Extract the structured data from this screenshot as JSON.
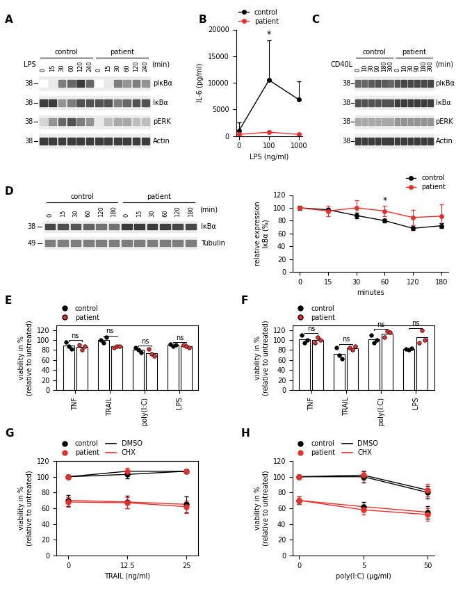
{
  "blots": [
    {
      "panel": "A",
      "stimulus": "LPS",
      "unit": "(min)",
      "groups": [
        "control",
        "patient"
      ],
      "lanes": [
        "0",
        "15",
        "30",
        "60",
        "120",
        "240"
      ],
      "rows": [
        {
          "name": "pIκBα",
          "mw": "38",
          "control": [
            0.0,
            0.1,
            0.6,
            0.7,
            0.9,
            0.7
          ],
          "patient": [
            0.0,
            0.1,
            0.6,
            0.5,
            0.6,
            0.5
          ]
        },
        {
          "name": "IκBα",
          "mw": "38",
          "control": [
            0.9,
            0.9,
            0.5,
            0.6,
            0.8,
            0.8
          ],
          "patient": [
            0.8,
            0.8,
            0.6,
            0.7,
            0.8,
            0.8
          ]
        },
        {
          "name": "pERK",
          "mw": "38",
          "control": [
            0.2,
            0.5,
            0.7,
            0.8,
            0.6,
            0.5
          ],
          "patient": [
            0.1,
            0.3,
            0.4,
            0.4,
            0.3,
            0.3
          ]
        },
        {
          "name": "Actin",
          "mw": "38",
          "control": [
            0.9,
            0.9,
            0.9,
            0.9,
            0.9,
            0.9
          ],
          "patient": [
            0.9,
            0.9,
            0.9,
            0.9,
            0.9,
            0.9
          ]
        }
      ]
    },
    {
      "panel": "C",
      "stimulus": "CD40L",
      "unit": "(min)",
      "groups": [
        "control",
        "patient"
      ],
      "lanes": [
        "0",
        "10",
        "30",
        "90",
        "180",
        "300"
      ],
      "rows": [
        {
          "name": "pIκBα",
          "mw": "38",
          "control": [
            0.7,
            0.7,
            0.75,
            0.8,
            0.75,
            0.7
          ],
          "patient": [
            0.8,
            0.85,
            0.85,
            0.85,
            0.85,
            0.85
          ]
        },
        {
          "name": "IκBα",
          "mw": "38",
          "control": [
            0.8,
            0.8,
            0.8,
            0.8,
            0.8,
            0.8
          ],
          "patient": [
            0.9,
            0.9,
            0.9,
            0.9,
            0.9,
            0.9
          ]
        },
        {
          "name": "pERK",
          "mw": "38",
          "control": [
            0.4,
            0.4,
            0.4,
            0.4,
            0.4,
            0.4
          ],
          "patient": [
            0.5,
            0.5,
            0.5,
            0.5,
            0.5,
            0.5
          ]
        },
        {
          "name": "Actin",
          "mw": "38",
          "control": [
            0.9,
            0.9,
            0.9,
            0.9,
            0.9,
            0.9
          ],
          "patient": [
            0.9,
            0.9,
            0.9,
            0.9,
            0.9,
            0.9
          ]
        }
      ]
    },
    {
      "panel": "D",
      "unit": "(min)",
      "groups": [
        "control",
        "patient"
      ],
      "lanes": [
        "0",
        "15",
        "30",
        "60",
        "120",
        "180"
      ],
      "rows": [
        {
          "name": "IκBα",
          "mw": "38",
          "control": [
            0.85,
            0.82,
            0.78,
            0.72,
            0.65,
            0.66
          ],
          "patient": [
            0.9,
            0.9,
            0.9,
            0.88,
            0.85,
            0.85
          ]
        },
        {
          "name": "Tubulin",
          "mw": "49",
          "control": [
            0.6,
            0.6,
            0.6,
            0.6,
            0.6,
            0.6
          ],
          "patient": [
            0.6,
            0.6,
            0.6,
            0.6,
            0.6,
            0.6
          ]
        }
      ]
    }
  ],
  "chart_data": [
    {
      "panel": "B",
      "type": "line",
      "categories": [
        "0",
        "100",
        "1000"
      ],
      "x_label": "LPS (ng/ml)",
      "y_label": "IL-6 (pg/ml)",
      "ylim": [
        0,
        20000
      ],
      "yticks": [
        0,
        5000,
        10000,
        15000,
        20000
      ],
      "legend": "upper left",
      "marker": "circle",
      "series": [
        {
          "name": "control",
          "color": "#000000",
          "values": [
            1000,
            10500,
            6800
          ],
          "error_upper": [
            1500,
            7500,
            3500
          ]
        },
        {
          "name": "patient",
          "color": "#e8302a",
          "values": [
            300,
            700,
            300
          ],
          "error_upper": [
            200,
            300,
            100
          ]
        }
      ],
      "annotations": [
        {
          "text": "*",
          "category": "100"
        }
      ]
    },
    {
      "type": "line",
      "categories": [
        "0",
        "15",
        "30",
        "60",
        "120",
        "180"
      ],
      "x_label": "minutes",
      "y_label": "relative expression\nIκBα (%)",
      "ylim": [
        0,
        120
      ],
      "yticks": [
        0,
        20,
        40,
        60,
        80,
        100,
        120
      ],
      "legend": "upper right",
      "marker": "circle",
      "series": [
        {
          "name": "control",
          "color": "#000000",
          "values": [
            100,
            97,
            88,
            80,
            68,
            72
          ],
          "error": [
            3,
            3,
            4,
            3,
            3,
            4
          ]
        },
        {
          "name": "patient",
          "color": "#e8302a",
          "values": [
            100,
            95,
            100,
            95,
            85,
            87
          ],
          "error": [
            1,
            8,
            12,
            8,
            12,
            18
          ]
        }
      ],
      "annotations": [
        {
          "text": "*",
          "category": "60"
        }
      ]
    },
    {
      "panel": "E",
      "type": "bar",
      "categories": [
        "TNF",
        "TRAIL",
        "poly(I:C)",
        "LPS"
      ],
      "y_label": "viability in %\n(relative to untreated)",
      "ylim": [
        0,
        130
      ],
      "yticks": [
        0,
        20,
        40,
        60,
        80,
        100,
        120
      ],
      "legend": "upper left",
      "series": [
        {
          "name": "control",
          "color": "#000000",
          "values": [
            89,
            100,
            80,
            90
          ],
          "points": [
            [
              96,
              88,
              82
            ],
            [
              100,
              95,
              105
            ],
            [
              85,
              80,
              75
            ],
            [
              92,
              88,
              90
            ]
          ]
        },
        {
          "name": "patient",
          "color": "#e8302a",
          "values": [
            86,
            87,
            74,
            88
          ],
          "points": [
            [
              90,
              80,
              88
            ],
            [
              85,
              88,
              87
            ],
            [
              82,
              72,
              68
            ],
            [
              90,
              88,
              85
            ]
          ]
        }
      ],
      "annotations": [
        {
          "text": "ns",
          "category": "TNF"
        },
        {
          "text": "ns",
          "category": "TRAIL"
        },
        {
          "text": "ns",
          "category": "poly(I:C)"
        },
        {
          "text": "ns",
          "category": "LPS"
        }
      ]
    },
    {
      "panel": "F",
      "type": "bar",
      "categories": [
        "TNF",
        "TRAIL",
        "poly(I:C)",
        "LPS"
      ],
      "y_label": "viability in %\n(relative to untreated)",
      "ylim": [
        0,
        130
      ],
      "yticks": [
        0,
        20,
        40,
        60,
        80,
        100,
        120
      ],
      "legend": "upper left",
      "series": [
        {
          "name": "control",
          "color": "#000000",
          "values": [
            102,
            72,
            102,
            82
          ],
          "points": [
            [
              110,
              95,
              100
            ],
            [
              85,
              70,
              62
            ],
            [
              110,
              95,
              100
            ],
            [
              82,
              80,
              83
            ]
          ]
        },
        {
          "name": "patient",
          "color": "#e8302a",
          "values": [
            100,
            84,
            113,
            105
          ],
          "points": [
            [
              95,
              105,
              100
            ],
            [
              85,
              80,
              88
            ],
            [
              105,
              118,
              115
            ],
            [
              95,
              120,
              100
            ]
          ]
        }
      ],
      "annotations": [
        {
          "text": "ns",
          "category": "TNF"
        },
        {
          "text": "ns",
          "category": "TRAIL"
        },
        {
          "text": "ns",
          "category": "poly(I:C)"
        },
        {
          "text": "ns",
          "category": "LPS"
        }
      ]
    },
    {
      "panel": "G",
      "type": "line",
      "x": [
        0,
        12.5,
        25
      ],
      "xlim": [
        -2.5,
        27.5
      ],
      "xticks": [
        0,
        12.5,
        25
      ],
      "x_label": "TRAIL (ng/ml)",
      "y_label": "viability in %\n(relative to untreated)",
      "ylim": [
        0,
        120
      ],
      "yticks": [
        0,
        20,
        40,
        60,
        80,
        100,
        120
      ],
      "legend": "upper left",
      "marker": "circle",
      "marker_groups": [
        {
          "name": "control",
          "color": "#000000"
        },
        {
          "name": "patient",
          "color": "#e8302a"
        }
      ],
      "line_groups": [
        {
          "name": "DMSO",
          "color": "#000000"
        },
        {
          "name": "CHX",
          "color": "#e8302a"
        }
      ],
      "series": [
        {
          "marker_group": "control",
          "line_group": "DMSO",
          "values": [
            100,
            103,
            107
          ],
          "error": [
            2,
            5,
            2
          ]
        },
        {
          "marker_group": "patient",
          "line_group": "DMSO",
          "values": [
            100,
            107,
            107
          ],
          "error": [
            2,
            4,
            2
          ]
        },
        {
          "marker_group": "control",
          "line_group": "CHX",
          "values": [
            70,
            68,
            65
          ],
          "error": [
            7,
            8,
            10
          ]
        },
        {
          "marker_group": "patient",
          "line_group": "CHX",
          "values": [
            68,
            67,
            62
          ],
          "error": [
            6,
            7,
            8
          ]
        }
      ]
    },
    {
      "panel": "H",
      "type": "line",
      "categories": [
        "0",
        "5",
        "50"
      ],
      "x_label": "poly(I:C) (µg/ml)",
      "y_label": "viability in %\n(relative to untreated)",
      "ylim": [
        0,
        120
      ],
      "yticks": [
        0,
        20,
        40,
        60,
        80,
        100,
        120
      ],
      "legend": "upper left",
      "marker": "circle",
      "marker_groups": [
        {
          "name": "control",
          "color": "#000000"
        },
        {
          "name": "patient",
          "color": "#e8302a"
        }
      ],
      "line_groups": [
        {
          "name": "DMSO",
          "color": "#000000"
        },
        {
          "name": "CHX",
          "color": "#e8302a"
        }
      ],
      "series": [
        {
          "marker_group": "control",
          "line_group": "DMSO",
          "values": [
            100,
            100,
            80
          ],
          "error": [
            2,
            7,
            8
          ]
        },
        {
          "marker_group": "patient",
          "line_group": "DMSO",
          "values": [
            100,
            102,
            83
          ],
          "error": [
            2,
            6,
            8
          ]
        },
        {
          "marker_group": "control",
          "line_group": "CHX",
          "values": [
            70,
            62,
            55
          ],
          "error": [
            5,
            6,
            8
          ]
        },
        {
          "marker_group": "patient",
          "line_group": "CHX",
          "values": [
            70,
            58,
            52
          ],
          "error": [
            5,
            6,
            8
          ]
        }
      ]
    }
  ]
}
